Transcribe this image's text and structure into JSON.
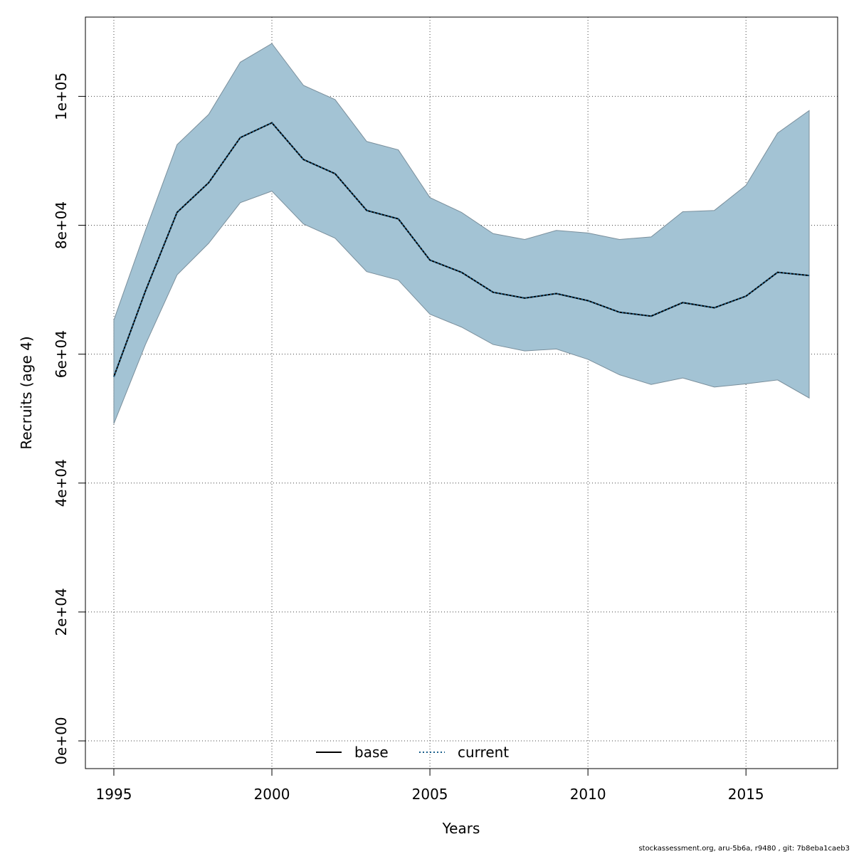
{
  "chart_data": {
    "type": "line",
    "xlabel": "Years",
    "ylabel": "Recruits (age 4)",
    "xlim": [
      1994.1,
      2017.9
    ],
    "ylim": [
      -4300,
      112300
    ],
    "x_ticks": [
      1995,
      2000,
      2005,
      2010,
      2015
    ],
    "x_tick_labels": [
      "1995",
      "2000",
      "2005",
      "2010",
      "2015"
    ],
    "y_ticks": [
      0,
      20000,
      40000,
      60000,
      80000,
      100000
    ],
    "y_tick_labels": [
      "0e+00",
      "2e+04",
      "4e+04",
      "6e+04",
      "8e+04",
      "1e+05"
    ],
    "grid": true,
    "x": [
      1995,
      1996,
      1997,
      1998,
      1999,
      2000,
      2001,
      2002,
      2003,
      2004,
      2005,
      2006,
      2007,
      2008,
      2009,
      2010,
      2011,
      2012,
      2013,
      2014,
      2015,
      2016,
      2017
    ],
    "band": {
      "color": "#a3c3d4",
      "lower": [
        49200,
        61500,
        72300,
        77200,
        83500,
        85300,
        80200,
        78000,
        72800,
        71500,
        66200,
        64200,
        61500,
        60500,
        60800,
        59200,
        56800,
        55300,
        56300,
        54900,
        55400,
        56000,
        53200
      ],
      "upper": [
        65300,
        79200,
        92500,
        97200,
        105300,
        108200,
        101700,
        99500,
        93000,
        91700,
        84300,
        82000,
        78700,
        77800,
        79200,
        78800,
        77800,
        78200,
        82100,
        82300,
        86200,
        94300,
        97800
      ]
    },
    "series": [
      {
        "name": "base",
        "style": "solid",
        "color": "#000000",
        "values": [
          56500,
          69800,
          82000,
          86600,
          93600,
          95900,
          90200,
          88000,
          82300,
          81000,
          74600,
          72700,
          69600,
          68700,
          69400,
          68300,
          66500,
          65900,
          68000,
          67200,
          69000,
          72700,
          72200
        ]
      },
      {
        "name": "current",
        "style": "dotted",
        "color": "#1a5f8a",
        "values": [
          56500,
          69800,
          82000,
          86600,
          93600,
          95900,
          90200,
          88000,
          82300,
          81000,
          74600,
          72700,
          69600,
          68700,
          69400,
          68300,
          66500,
          65900,
          68000,
          67200,
          69000,
          72700,
          72200
        ]
      }
    ],
    "legend": {
      "placement": "bottom-center",
      "entries": [
        "base",
        "current"
      ]
    }
  },
  "footer": "stockassessment.org, aru-5b6a, r9480 , git: 7b8eba1caeb3"
}
